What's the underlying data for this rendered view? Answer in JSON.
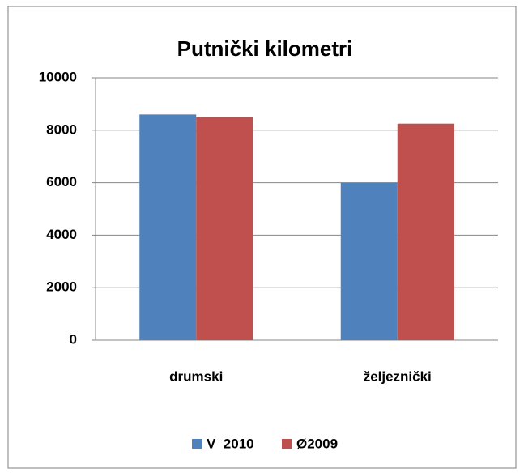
{
  "chart_data": {
    "type": "bar",
    "title": "Putnički kilometri",
    "categories": [
      "drumski",
      "željeznički"
    ],
    "series": [
      {
        "name": "V  2010",
        "color": "#4f81bd",
        "values": [
          8600,
          6000
        ]
      },
      {
        "name": "Ø2009",
        "color": "#c0504d",
        "values": [
          8500,
          8250
        ]
      }
    ],
    "ylim": [
      0,
      10000
    ],
    "yticks": [
      0,
      2000,
      4000,
      6000,
      8000,
      10000
    ],
    "grid": true,
    "legend": "bottom"
  }
}
